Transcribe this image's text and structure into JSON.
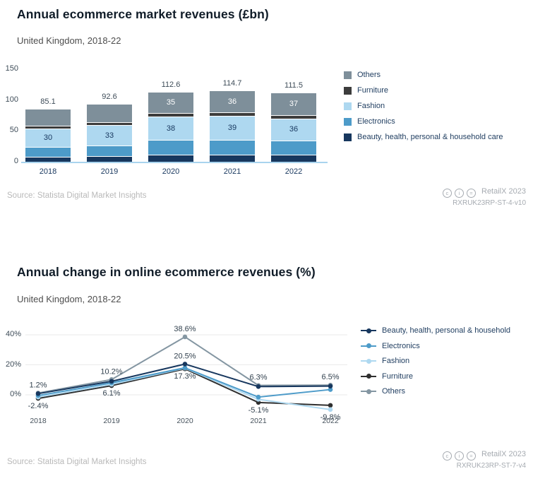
{
  "chart_data": [
    {
      "type": "bar",
      "stacked": true,
      "title": "Annual ecommerce market revenues (£bn)",
      "subtitle": "United Kingdom, 2018-22",
      "categories": [
        "2018",
        "2019",
        "2020",
        "2021",
        "2022"
      ],
      "ylim": [
        0,
        150
      ],
      "yticks": [
        0,
        50,
        100,
        150
      ],
      "totals": [
        "85.1",
        "92.6",
        "112.6",
        "114.7",
        "111.5"
      ],
      "series": [
        {
          "name": "Beauty, health, personal & household care",
          "color": "#17375e",
          "values": [
            7,
            8,
            10,
            10,
            10
          ],
          "labels": [
            "",
            "",
            "",
            "",
            ""
          ]
        },
        {
          "name": "Electronics",
          "color": "#4d9bc9",
          "values": [
            16,
            17,
            24,
            24,
            23
          ],
          "labels": [
            "",
            "",
            "",
            "",
            ""
          ]
        },
        {
          "name": "Fashion",
          "color": "#aed8f0",
          "values": [
            30,
            33,
            38,
            39,
            36
          ],
          "labels": [
            "30",
            "33",
            "38",
            "39",
            "36"
          ],
          "label_color": "#17375e"
        },
        {
          "name": "Furniture",
          "color": "#3c3c3c",
          "values": [
            4.1,
            4.6,
            5.6,
            5.7,
            5.5
          ],
          "labels": [
            "",
            "",
            "",
            "",
            ""
          ]
        },
        {
          "name": "Others",
          "color": "#7e8f9a",
          "values": [
            28,
            30,
            35,
            36,
            37
          ],
          "labels": [
            "",
            "",
            "35",
            "36",
            "37"
          ],
          "label_color": "#ffffff"
        }
      ],
      "legend": [
        "Others",
        "Furniture",
        "Fashion",
        "Electronics",
        "Beauty, health, personal & household care"
      ],
      "legend_position": "right",
      "grid": false
    },
    {
      "type": "line",
      "title": "Annual change in online ecommerce revenues (%)",
      "subtitle": "United Kingdom, 2018-22",
      "categories": [
        "2018",
        "2019",
        "2020",
        "2021",
        "2022"
      ],
      "ylim": [
        -12,
        45
      ],
      "yticks": [
        0,
        20,
        40
      ],
      "ytick_labels": [
        "0%",
        "20%",
        "40%"
      ],
      "series": [
        {
          "name": "Beauty, health, personal & household",
          "color": "#17375e",
          "values": [
            0.8,
            9.0,
            20.5,
            5.5,
            5.8
          ]
        },
        {
          "name": "Electronics",
          "color": "#4d9bc9",
          "values": [
            -0.5,
            8.0,
            18.0,
            -1.5,
            3.5
          ]
        },
        {
          "name": "Fashion",
          "color": "#aed8f0",
          "values": [
            -1.5,
            7.0,
            17.8,
            -3.0,
            -9.8
          ]
        },
        {
          "name": "Furniture",
          "color": "#2f2f2f",
          "values": [
            -2.4,
            6.1,
            17.3,
            -5.1,
            -7.0
          ]
        },
        {
          "name": "Others",
          "color": "#8496a2",
          "values": [
            1.2,
            10.2,
            38.6,
            6.3,
            6.5
          ]
        }
      ],
      "annotations": [
        {
          "text": "1.2%",
          "series": 4,
          "index": 0,
          "position": "above"
        },
        {
          "text": "-2.4%",
          "series": 3,
          "index": 0,
          "position": "below"
        },
        {
          "text": "10.2%",
          "series": 4,
          "index": 1,
          "position": "above"
        },
        {
          "text": "6.1%",
          "series": 3,
          "index": 1,
          "position": "below"
        },
        {
          "text": "38.6%",
          "series": 4,
          "index": 2,
          "position": "above"
        },
        {
          "text": "20.5%",
          "series": 0,
          "index": 2,
          "position": "above"
        },
        {
          "text": "17.3%",
          "series": 3,
          "index": 2,
          "position": "below"
        },
        {
          "text": "6.3%",
          "series": 4,
          "index": 3,
          "position": "above"
        },
        {
          "text": "-5.1%",
          "series": 3,
          "index": 3,
          "position": "below"
        },
        {
          "text": "6.5%",
          "series": 4,
          "index": 4,
          "position": "above"
        },
        {
          "text": "-9.8%",
          "series": 2,
          "index": 4,
          "position": "below"
        }
      ],
      "legend_position": "right",
      "grid": true
    }
  ],
  "footers": [
    {
      "source": "Source: Statista Digital Market Insights",
      "credit": "RetailX 2023",
      "code": "RXRUK23RP-ST-4-v10",
      "icons": [
        "c",
        "i",
        "="
      ]
    },
    {
      "source": "Source: Statista Digital Market Insights",
      "credit": "RetailX 2023",
      "code": "RXRUK23RP-ST-7-v4",
      "icons": [
        "c",
        "i",
        "="
      ]
    }
  ]
}
